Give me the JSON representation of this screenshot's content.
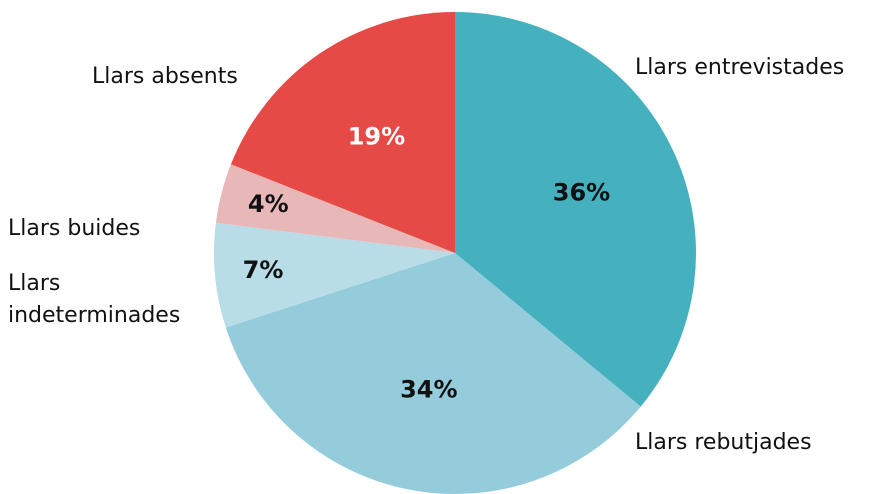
{
  "chart_data": {
    "type": "pie",
    "categories": [
      "Llars entrevistades",
      "Llars rebutjades",
      "Llars indeterminades",
      "Llars buides",
      "Llars absents"
    ],
    "values": [
      36,
      34,
      7,
      4,
      19
    ],
    "value_labels": [
      "36%",
      "34%",
      "7%",
      "4%",
      "19%"
    ],
    "colors": [
      "#45b1bf",
      "#95ccdc",
      "#b8dde7",
      "#e8b8b8",
      "#e64a47"
    ]
  }
}
